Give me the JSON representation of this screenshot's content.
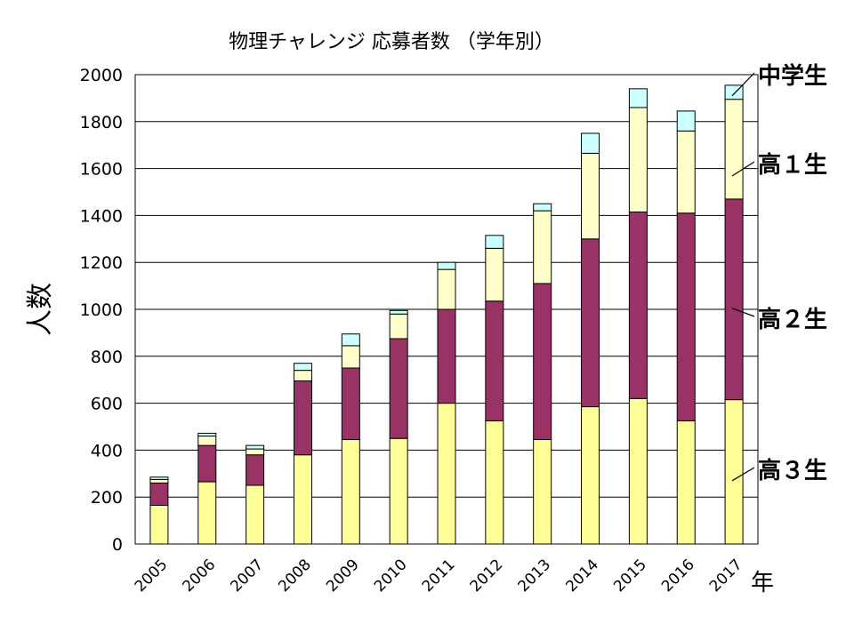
{
  "chart_data": {
    "type": "bar",
    "stacked": true,
    "title": "物理チャレンジ 応募者数 （学年別）",
    "ylabel": "人数",
    "xunit": "年",
    "ylim": [
      0,
      2000
    ],
    "yticks": [
      "0",
      "200",
      "400",
      "600",
      "800",
      "1000",
      "1200",
      "1400",
      "1600",
      "1800",
      "2000"
    ],
    "grid": true,
    "categories": [
      "2005",
      "2006",
      "2007",
      "2008",
      "2009",
      "2010",
      "2011",
      "2012",
      "2013",
      "2014",
      "2015",
      "2016",
      "2017"
    ],
    "series": [
      {
        "name": "高３生",
        "color": "#ffff99",
        "values": [
          165,
          265,
          250,
          380,
          445,
          450,
          600,
          525,
          445,
          585,
          620,
          525,
          615
        ]
      },
      {
        "name": "高２生",
        "color": "#993366",
        "values": [
          95,
          155,
          130,
          315,
          305,
          425,
          400,
          510,
          665,
          715,
          795,
          885,
          855
        ]
      },
      {
        "name": "高１生",
        "color": "#ffffcc",
        "values": [
          15,
          40,
          25,
          45,
          95,
          105,
          170,
          225,
          310,
          365,
          445,
          350,
          425
        ]
      },
      {
        "name": "中学生",
        "color": "#ccffff",
        "values": [
          10,
          12,
          15,
          30,
          50,
          15,
          30,
          55,
          30,
          85,
          80,
          85,
          60
        ]
      }
    ],
    "annotations": [
      {
        "label": "中学生",
        "series": 3
      },
      {
        "label": "高１生",
        "series": 2
      },
      {
        "label": "高２生",
        "series": 1
      },
      {
        "label": "高３生",
        "series": 0
      }
    ]
  }
}
